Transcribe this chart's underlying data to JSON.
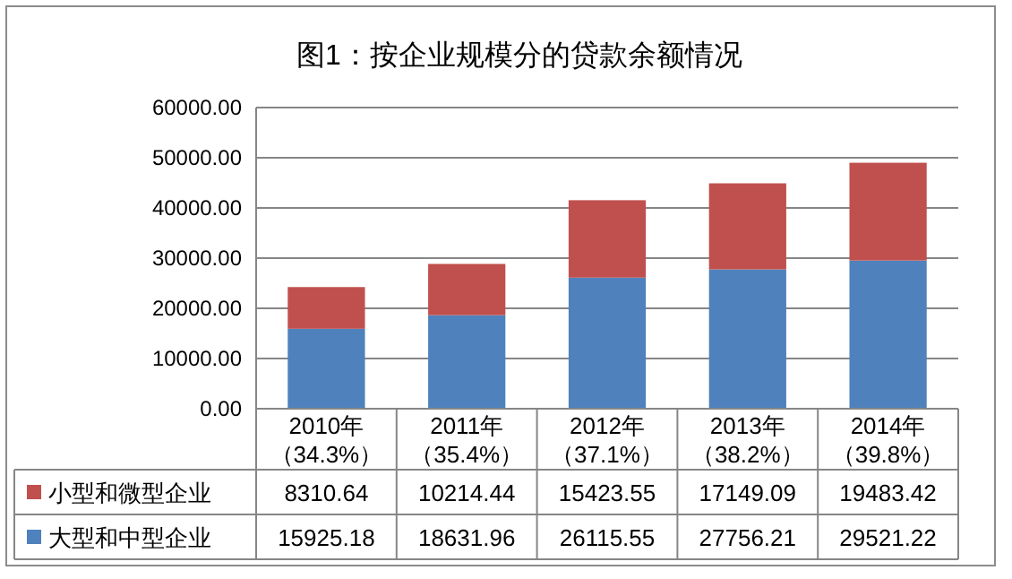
{
  "chart_data": {
    "type": "bar",
    "title": "图1：按企业规模分的贷款余额情况",
    "stacked": true,
    "categories": [
      "2010年（34.3%）",
      "2011年（35.4%）",
      "2012年（37.1%）",
      "2013年（38.2%）",
      "2014年（39.8%）"
    ],
    "series": [
      {
        "name": "大型和中型企业",
        "color": "#4f81bd",
        "values": [
          15925.18,
          18631.96,
          26115.55,
          27756.21,
          29521.22
        ]
      },
      {
        "name": "小型和微型企业",
        "color": "#c0504d",
        "values": [
          8310.64,
          10214.44,
          15423.55,
          17149.09,
          19483.42
        ]
      }
    ],
    "ylim": [
      0,
      60000
    ],
    "yticks": [
      {
        "value": 0,
        "label": "0.00"
      },
      {
        "value": 10000,
        "label": "10000.00"
      },
      {
        "value": 20000,
        "label": "20000.00"
      },
      {
        "value": 30000,
        "label": "30000.00"
      },
      {
        "value": 40000,
        "label": "40000.00"
      },
      {
        "value": 50000,
        "label": "50000.00"
      },
      {
        "value": 60000,
        "label": "60000.00"
      }
    ],
    "grid": "y",
    "legend": "bottom",
    "data_labels": true
  }
}
